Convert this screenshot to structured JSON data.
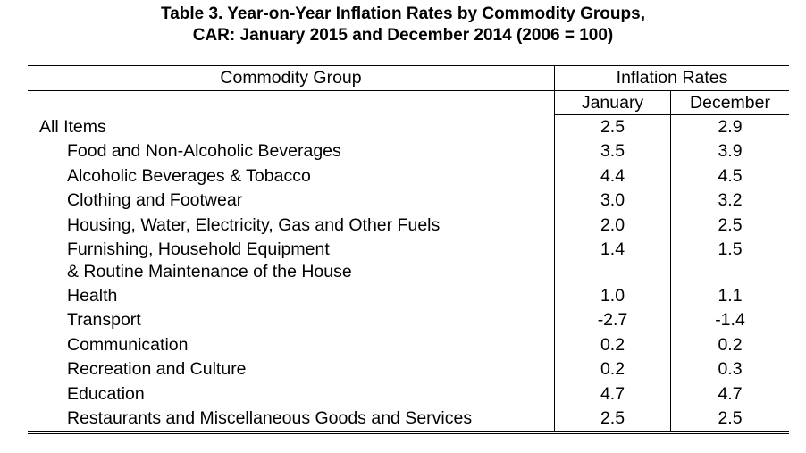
{
  "title": {
    "line1": "Table 3. Year-on-Year Inflation Rates by Commodity Groups,",
    "line2": "CAR: January 2015 and December 2014 (2006 = 100)"
  },
  "header": {
    "group": "Commodity Group",
    "rates": "Inflation Rates",
    "january": "January",
    "december": "December"
  },
  "rows": [
    {
      "label": "All Items",
      "label2": "",
      "january": "2.5",
      "december": "2.9",
      "indent": false
    },
    {
      "label": "Food and Non-Alcoholic Beverages",
      "label2": "",
      "january": "3.5",
      "december": "3.9",
      "indent": true
    },
    {
      "label": "Alcoholic Beverages & Tobacco",
      "label2": "",
      "january": "4.4",
      "december": "4.5",
      "indent": true
    },
    {
      "label": "Clothing and Footwear",
      "label2": "",
      "january": "3.0",
      "december": "3.2",
      "indent": true
    },
    {
      "label": "Housing, Water, Electricity,   Gas and  Other Fuels",
      "label2": "",
      "january": "2.0",
      "december": "2.5",
      "indent": true
    },
    {
      "label": "Furnishing, Household  Equipment",
      "label2": "& Routine Maintenance of the House",
      "january": "1.4",
      "december": "1.5",
      "indent": true
    },
    {
      "label": "Health",
      "label2": "",
      "january": "1.0",
      "december": "1.1",
      "indent": true
    },
    {
      "label": "Transport",
      "label2": "",
      "january": "-2.7",
      "december": "-1.4",
      "indent": true
    },
    {
      "label": "Communication",
      "label2": "",
      "january": "0.2",
      "december": "0.2",
      "indent": true
    },
    {
      "label": "Recreation and Culture",
      "label2": "",
      "january": "0.2",
      "december": "0.3",
      "indent": true
    },
    {
      "label": "Education",
      "label2": "",
      "january": "4.7",
      "december": "4.7",
      "indent": true
    },
    {
      "label": "Restaurants and Miscellaneous  Goods and Services",
      "label2": "",
      "january": "2.5",
      "december": "2.5",
      "indent": true
    }
  ]
}
